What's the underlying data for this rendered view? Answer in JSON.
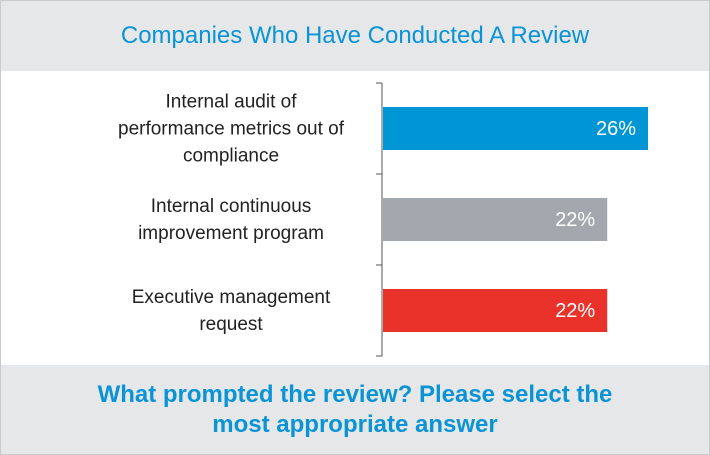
{
  "chart_data": {
    "type": "barh",
    "title": "Companies Who Have Conducted A Review",
    "subtitle": "What prompted the review? Please select the most appropriate answer",
    "categories": [
      "Internal audit of performance metrics out of compliance",
      "Internal continuous improvement program",
      "Executive management request"
    ],
    "values": [
      26,
      22,
      22
    ],
    "value_labels": [
      "26%",
      "22%",
      "22%"
    ],
    "colors": [
      "#0096d6",
      "#a2a8ad",
      "#e8322a"
    ]
  }
}
